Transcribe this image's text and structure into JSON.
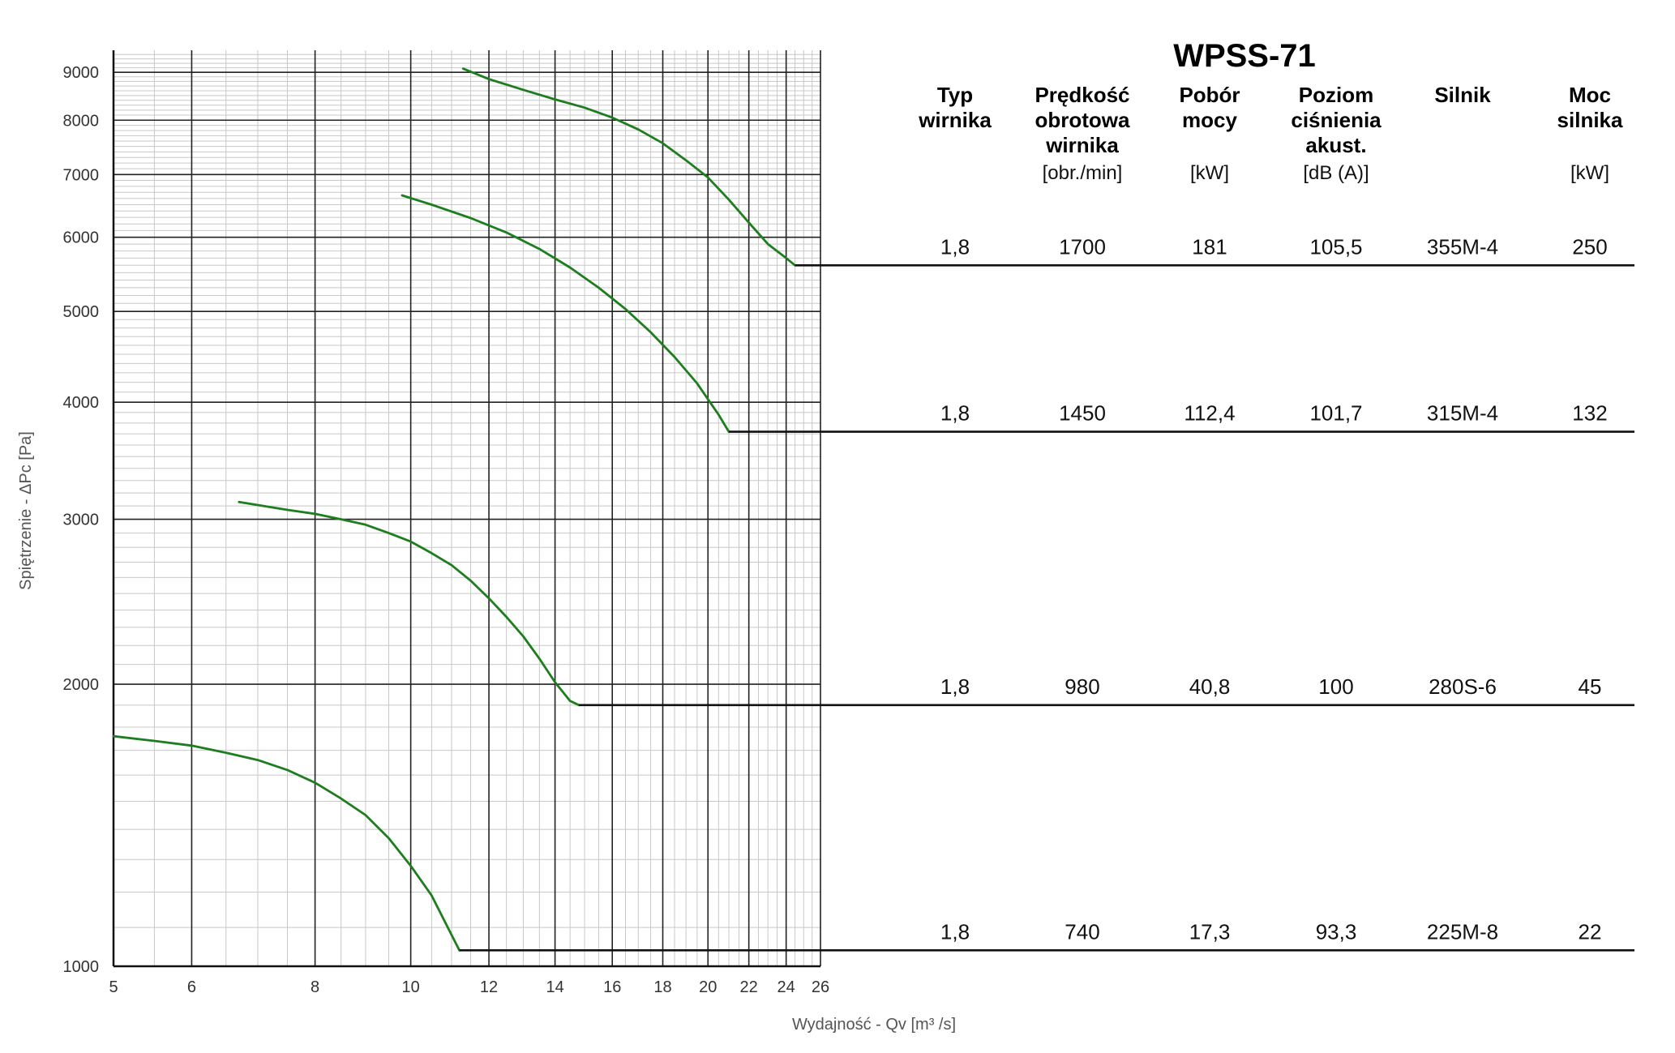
{
  "chart_data": {
    "type": "line",
    "title": "WPSS-71",
    "xlabel": "Wydajność - Qv [m³ /s]",
    "ylabel": "Spiętrzenie - ΔPc [Pa]",
    "x_scale": "log",
    "y_scale": "log",
    "xlim": [
      5,
      26
    ],
    "ylim": [
      1000,
      9500
    ],
    "x_ticks": [
      "5",
      "6",
      "8",
      "10",
      "12",
      "14",
      "16",
      "18",
      "20",
      "22",
      "24",
      "26"
    ],
    "y_ticks": [
      "1000",
      "2000",
      "3000",
      "4000",
      "5000",
      "6000",
      "7000",
      "8000",
      "9000"
    ],
    "grid": true,
    "series": [
      {
        "speed": "1700",
        "color": "#1e7d1e",
        "points": [
          [
            11.3,
            9080
          ],
          [
            12.0,
            8850
          ],
          [
            13.0,
            8620
          ],
          [
            14.0,
            8420
          ],
          [
            15.0,
            8250
          ],
          [
            16.0,
            8050
          ],
          [
            17.0,
            7820
          ],
          [
            18.0,
            7560
          ],
          [
            19.0,
            7250
          ],
          [
            20.0,
            6950
          ],
          [
            21.0,
            6580
          ],
          [
            22.0,
            6220
          ],
          [
            23.0,
            5900
          ],
          [
            24.0,
            5700
          ],
          [
            24.5,
            5600
          ],
          [
            26.0,
            5600
          ]
        ]
      },
      {
        "speed": "1450",
        "color": "#1e7d1e",
        "points": [
          [
            9.8,
            6650
          ],
          [
            10.5,
            6500
          ],
          [
            11.5,
            6290
          ],
          [
            12.5,
            6070
          ],
          [
            13.5,
            5830
          ],
          [
            14.5,
            5570
          ],
          [
            15.5,
            5300
          ],
          [
            16.5,
            5030
          ],
          [
            17.5,
            4750
          ],
          [
            18.5,
            4470
          ],
          [
            19.5,
            4190
          ],
          [
            20.5,
            3880
          ],
          [
            21.0,
            3720
          ],
          [
            26.0,
            3720
          ]
        ]
      },
      {
        "speed": "980",
        "color": "#1e7d1e",
        "points": [
          [
            6.7,
            3130
          ],
          [
            7.5,
            3070
          ],
          [
            8.0,
            3040
          ],
          [
            8.5,
            3000
          ],
          [
            9.0,
            2960
          ],
          [
            9.5,
            2900
          ],
          [
            10.0,
            2840
          ],
          [
            10.5,
            2760
          ],
          [
            11.0,
            2680
          ],
          [
            11.5,
            2580
          ],
          [
            12.0,
            2470
          ],
          [
            12.5,
            2360
          ],
          [
            13.0,
            2250
          ],
          [
            13.5,
            2130
          ],
          [
            14.0,
            2010
          ],
          [
            14.5,
            1920
          ],
          [
            14.8,
            1900
          ],
          [
            26.0,
            1900
          ]
        ]
      },
      {
        "speed": "740",
        "color": "#1e7d1e",
        "points": [
          [
            5.0,
            1760
          ],
          [
            5.5,
            1740
          ],
          [
            6.0,
            1720
          ],
          [
            6.5,
            1690
          ],
          [
            7.0,
            1660
          ],
          [
            7.5,
            1620
          ],
          [
            8.0,
            1570
          ],
          [
            8.5,
            1510
          ],
          [
            9.0,
            1450
          ],
          [
            9.5,
            1370
          ],
          [
            10.0,
            1280
          ],
          [
            10.5,
            1190
          ],
          [
            11.0,
            1080
          ],
          [
            11.2,
            1040
          ],
          [
            26.0,
            1040
          ]
        ]
      }
    ]
  },
  "table": {
    "title": "WPSS-71",
    "headers": [
      {
        "lines": [
          "Typ",
          "wirnika"
        ],
        "unit": ""
      },
      {
        "lines": [
          "Prędkość",
          "obrotowa",
          "wirnika"
        ],
        "unit": "[obr./min]"
      },
      {
        "lines": [
          "Pobór",
          "mocy"
        ],
        "unit": "[kW]"
      },
      {
        "lines": [
          "Poziom",
          "ciśnienia",
          "akust."
        ],
        "unit": "[dB (A)]"
      },
      {
        "lines": [
          "Silnik"
        ],
        "unit": ""
      },
      {
        "lines": [
          "Moc",
          "silnika"
        ],
        "unit": "[kW]"
      }
    ],
    "rows": [
      [
        "1,8",
        "1700",
        "181",
        "105,5",
        "355M-4",
        "250"
      ],
      [
        "1,8",
        "1450",
        "112,4",
        "101,7",
        "315M-4",
        "132"
      ],
      [
        "1,8",
        "980",
        "40,8",
        "100",
        "280S-6",
        "45"
      ],
      [
        "1,8",
        "740",
        "17,3",
        "93,3",
        "225M-8",
        "22"
      ]
    ]
  }
}
